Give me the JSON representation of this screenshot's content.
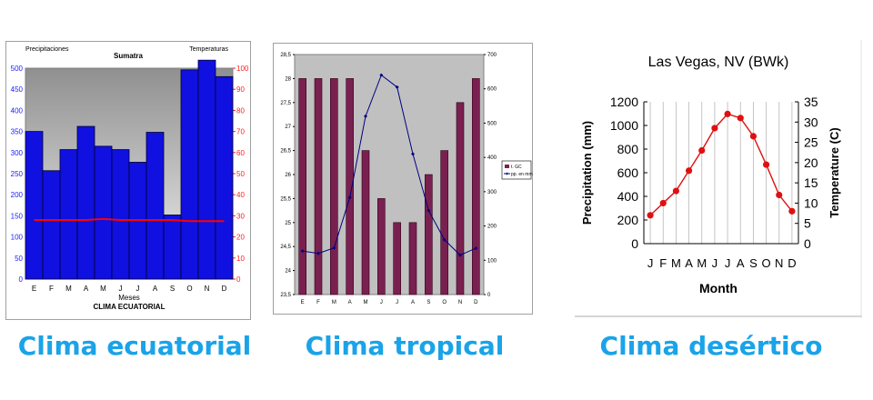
{
  "captions": {
    "equatorial": "Clima ecuatorial",
    "tropical": "Clima tropical",
    "desert": "Clima desértico"
  },
  "chart_data": [
    {
      "type": "bar",
      "title": "Sumatra",
      "subtitle": "CLIMA ECUATORIAL",
      "left_axis_title": "Precipitaciones",
      "right_axis_title": "Temperaturas",
      "xlabel": "Meses",
      "categories": [
        "E",
        "F",
        "M",
        "A",
        "M",
        "J",
        "J",
        "A",
        "S",
        "O",
        "N",
        "D"
      ],
      "series": [
        {
          "type": "bar",
          "axis": "left",
          "color": "#1010e0",
          "values": [
            350,
            257,
            307,
            362,
            315,
            307,
            277,
            348,
            152,
            496,
            519,
            480
          ]
        },
        {
          "type": "line",
          "axis": "right",
          "color": "#ff0000",
          "values": [
            28,
            28,
            28,
            28,
            28.5,
            28,
            28,
            28,
            28,
            27.5,
            27.5,
            27.5
          ]
        }
      ],
      "ylim_left": [
        0,
        500
      ],
      "ylim_right": [
        0,
        100
      ],
      "yticks_left": [
        0,
        50,
        100,
        150,
        200,
        250,
        300,
        350,
        400,
        450,
        500
      ],
      "yticks_right": [
        0,
        10,
        20,
        30,
        40,
        50,
        60,
        70,
        80,
        90,
        100
      ],
      "colors": {
        "plot_top": "#909090",
        "plot_bottom": "#f0f0f0",
        "left_tick": "#1a1aff",
        "right_tick": "#ff2020"
      }
    },
    {
      "type": "bar",
      "categories": [
        "E",
        "F",
        "M",
        "A",
        "M",
        "J",
        "J",
        "A",
        "S",
        "O",
        "N",
        "D"
      ],
      "series": [
        {
          "name": "t. GC",
          "type": "bar",
          "axis": "left",
          "color": "#7a2050",
          "values": [
            28,
            28,
            28,
            28,
            26.5,
            25.5,
            25,
            25,
            26,
            26.5,
            27.5,
            28
          ]
        },
        {
          "name": "pp. en mm.",
          "type": "line",
          "axis": "right",
          "color": "#000080",
          "values": [
            127,
            120,
            136,
            283,
            520,
            640,
            605,
            410,
            245,
            160,
            115,
            135
          ]
        }
      ],
      "ylim_left": [
        23.5,
        28.5
      ],
      "ylim_right": [
        0,
        700
      ],
      "yticks_left": [
        "23,5",
        "24",
        "24,5",
        "25",
        "25,5",
        "26",
        "26,5",
        "27",
        "27,5",
        "28",
        "28,5"
      ],
      "yticks_right": [
        0,
        100,
        200,
        300,
        400,
        500,
        600,
        700
      ],
      "legend": "right",
      "colors": {
        "plot_bg": "#c0c0c0"
      }
    },
    {
      "type": "line",
      "title": "Las Vegas, NV (BWk)",
      "xlabel": "Month",
      "ylabel_left": "Precipitation (mm)",
      "ylabel_right": "Temperature (C)",
      "categories": [
        "J",
        "F",
        "M",
        "A",
        "M",
        "J",
        "J",
        "A",
        "S",
        "O",
        "N",
        "D"
      ],
      "series": [
        {
          "type": "line",
          "axis": "right",
          "color": "#e01010",
          "values": [
            7,
            10,
            13,
            18,
            23,
            28.5,
            32,
            31,
            26.5,
            19.5,
            12,
            8
          ]
        }
      ],
      "ylim_left": [
        0,
        1200
      ],
      "ylim_right": [
        0,
        35
      ],
      "yticks_left": [
        0,
        200,
        400,
        600,
        800,
        1000,
        1200
      ],
      "yticks_right": [
        0,
        5,
        10,
        15,
        20,
        25,
        30,
        35
      ],
      "grid": "vertical"
    }
  ]
}
